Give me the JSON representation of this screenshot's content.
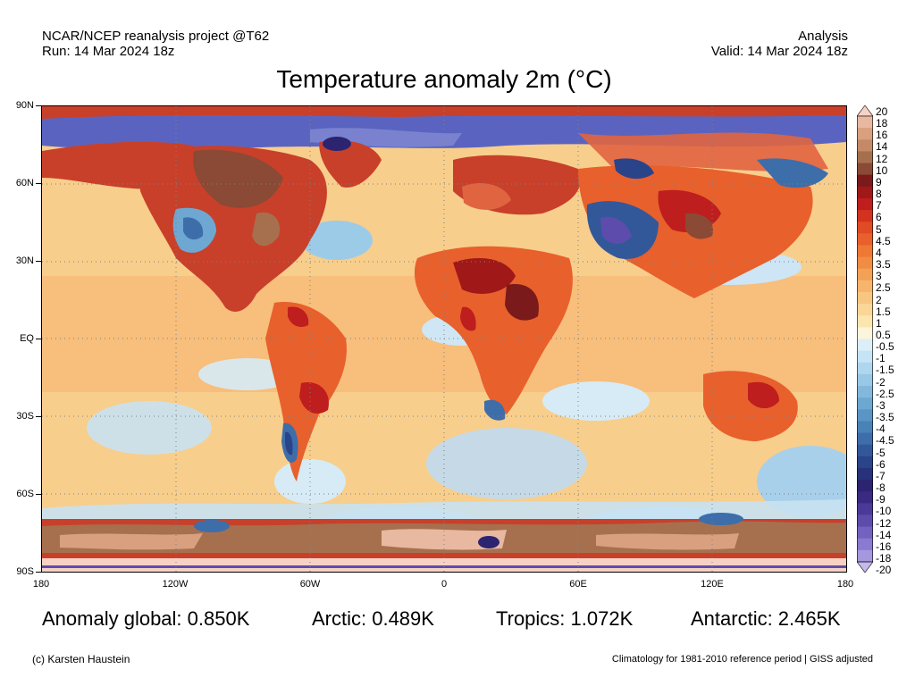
{
  "header": {
    "project": "NCAR/NCEP reanalysis project @T62",
    "run": "Run: 14 Mar 2024 18z",
    "kind": "Analysis",
    "valid": "Valid: 14 Mar 2024 18z"
  },
  "title": "Temperature anomaly 2m (°C)",
  "axes": {
    "lat_labels": [
      "90N",
      "60N",
      "30N",
      "EQ",
      "30S",
      "60S",
      "90S"
    ],
    "lon_labels": [
      "180",
      "120W",
      "60W",
      "0",
      "60E",
      "120E",
      "180"
    ]
  },
  "colorbar": {
    "labels": [
      "20",
      "18",
      "16",
      "14",
      "12",
      "10",
      "9",
      "8",
      "7",
      "6",
      "5",
      "4.5",
      "4",
      "3.5",
      "3",
      "2.5",
      "2",
      "1.5",
      "1",
      "0.5",
      "-0.5",
      "-1",
      "-1.5",
      "-2",
      "-2.5",
      "-3",
      "-3.5",
      "-4",
      "-4.5",
      "-5",
      "-6",
      "-7",
      "-8",
      "-9",
      "-10",
      "-12",
      "-14",
      "-16",
      "-18",
      "-20"
    ],
    "colors": [
      "#f7d2c4",
      "#e8b8a0",
      "#d9a080",
      "#c48a68",
      "#a6704f",
      "#8a4a35",
      "#7a1a1a",
      "#a01818",
      "#be1e1e",
      "#d2321e",
      "#e04a24",
      "#e8602c",
      "#ee7834",
      "#f08c44",
      "#f4a158",
      "#f7b46c",
      "#f8c680",
      "#fad796",
      "#fbe6b0",
      "#fdf4dc",
      "#dceef8",
      "#c6e4f5",
      "#afd6ef",
      "#98c8e6",
      "#83b8dc",
      "#6ea8d2",
      "#5b95c6",
      "#4a82b8",
      "#3d6eaa",
      "#32589a",
      "#2a448a",
      "#27327a",
      "#2c2470",
      "#3a2a82",
      "#4c3a98",
      "#5e4cad",
      "#7462c0",
      "#8a7ad0",
      "#a698de",
      "#c4b8ec"
    ]
  },
  "stats": {
    "global": "Anomaly global: 0.850K",
    "arctic": "Arctic: 0.489K",
    "tropics": "Tropics: 1.072K",
    "antarctic": "Antarctic: 2.465K"
  },
  "footer": {
    "credit": "(c) Karsten Haustein",
    "climatology": "Climatology for 1981-2010 reference period | GISS adjusted"
  }
}
